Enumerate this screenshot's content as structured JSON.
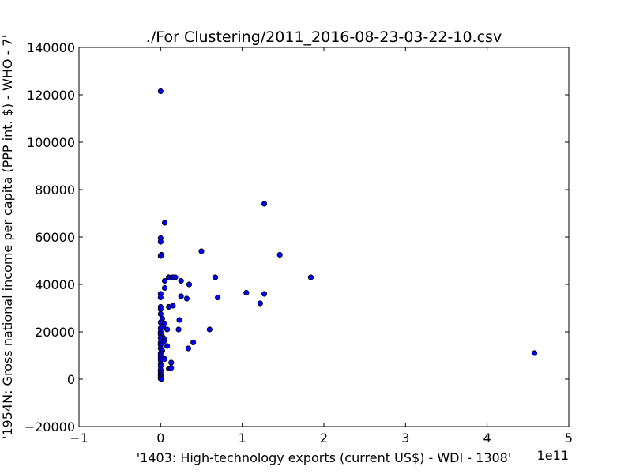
{
  "chart_data": {
    "type": "scatter",
    "title": "./For Clustering/2011_2016-08-23-03-22-10.csv",
    "xlabel": "'1403: High-technology exports  (current US$) - WDI - 1308'",
    "ylabel": "'1954N: Gross national income per capita (PPP int. $) - WHO - 7'",
    "x_offset_label": "1e11",
    "xlim": [
      -1,
      5
    ],
    "ylim": [
      -20000,
      140000
    ],
    "x_ticks": [
      "−1",
      "0",
      "1",
      "2",
      "3",
      "4",
      "5"
    ],
    "y_ticks": [
      "−20000",
      "0",
      "20000",
      "40000",
      "60000",
      "80000",
      "100000",
      "120000",
      "140000"
    ],
    "grid": false,
    "marker_color": "#0000ff",
    "points": [
      [
        0.0,
        121500
      ],
      [
        0.05,
        66000
      ],
      [
        0.0,
        59500
      ],
      [
        0.0,
        58000
      ],
      [
        0.01,
        52500
      ],
      [
        0.0,
        52000
      ],
      [
        0.05,
        41500
      ],
      [
        0.1,
        43000
      ],
      [
        0.15,
        43000
      ],
      [
        0.18,
        43000
      ],
      [
        0.05,
        38500
      ],
      [
        0.0,
        36000
      ],
      [
        0.0,
        34500
      ],
      [
        0.0,
        30500
      ],
      [
        0.0,
        29500
      ],
      [
        0.1,
        30500
      ],
      [
        0.15,
        31000
      ],
      [
        0.0,
        27500
      ],
      [
        0.02,
        25500
      ],
      [
        0.0,
        24000
      ],
      [
        0.05,
        23500
      ],
      [
        0.03,
        22000
      ],
      [
        0.0,
        21500
      ],
      [
        0.08,
        21000
      ],
      [
        0.0,
        20000
      ],
      [
        0.0,
        19000
      ],
      [
        0.02,
        18000
      ],
      [
        0.0,
        17500
      ],
      [
        0.05,
        17000
      ],
      [
        0.04,
        16000
      ],
      [
        0.0,
        15500
      ],
      [
        0.0,
        14500
      ],
      [
        0.08,
        14000
      ],
      [
        0.0,
        13000
      ],
      [
        0.02,
        12000
      ],
      [
        0.0,
        11000
      ],
      [
        0.0,
        10000
      ],
      [
        0.0,
        9000
      ],
      [
        0.05,
        8500
      ],
      [
        0.0,
        8000
      ],
      [
        0.13,
        7000
      ],
      [
        0.0,
        6500
      ],
      [
        0.0,
        5500
      ],
      [
        0.1,
        4500
      ],
      [
        0.13,
        4800
      ],
      [
        0.0,
        4000
      ],
      [
        0.0,
        3000
      ],
      [
        0.0,
        2000
      ],
      [
        0.0,
        1500
      ],
      [
        0.0,
        800
      ],
      [
        0.0,
        300
      ],
      [
        0.01,
        100
      ],
      [
        0.25,
        41500
      ],
      [
        0.35,
        40000
      ],
      [
        0.25,
        35000
      ],
      [
        0.32,
        34000
      ],
      [
        0.23,
        25000
      ],
      [
        0.22,
        21000
      ],
      [
        0.4,
        15500
      ],
      [
        0.34,
        13000
      ],
      [
        0.5,
        54000
      ],
      [
        0.67,
        43000
      ],
      [
        0.7,
        34500
      ],
      [
        0.6,
        21000
      ],
      [
        1.05,
        36500
      ],
      [
        1.22,
        32000
      ],
      [
        1.27,
        36000
      ],
      [
        1.27,
        74000
      ],
      [
        1.46,
        52500
      ],
      [
        1.84,
        43000
      ],
      [
        4.58,
        11000
      ]
    ]
  }
}
